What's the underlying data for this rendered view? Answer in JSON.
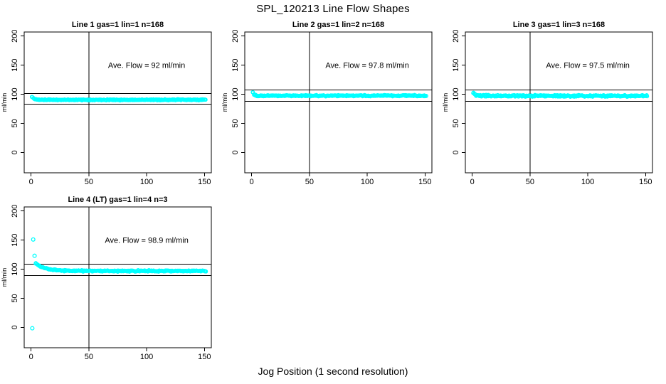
{
  "figure": {
    "title": "SPL_120213  Line Flow Shapes",
    "xlabel": "Jog Position (1 second resolution)",
    "background": "#ffffff",
    "point_color": "#00ffff",
    "axis_color": "#000000"
  },
  "chart_data": {
    "type": "scatter",
    "title": "SPL_120213  Line Flow Shapes",
    "xlabel": "Jog Position (1 second resolution)",
    "ylabel": "ml/min",
    "legend": "none",
    "grid": "off",
    "shared_axes": {
      "xlim": [
        -6,
        156
      ],
      "ylim": [
        -35,
        207
      ],
      "xticks": [
        0,
        50,
        100,
        150
      ],
      "yticks": [
        0,
        50,
        100,
        150,
        200
      ],
      "vline_x": 50,
      "annotation_x": 100,
      "annotation_y": 150
    },
    "panels": [
      {
        "title": "Line 1 gas=1 lin=1 n=168",
        "annotation": "Ave. Flow =  92  ml/min",
        "ave_flow_ml_min": 92,
        "hlines": [
          101.2,
          82.8
        ],
        "band": {
          "x_start": 1,
          "x_end": 151,
          "step": 1,
          "per_x": 2,
          "mean": 90.5,
          "jitter": 1.4,
          "transient_amp": 4.5,
          "transient_decay": 1.8,
          "seed": 11
        },
        "outliers": []
      },
      {
        "title": "Line 2 gas=1 lin=2 n=168",
        "annotation": "Ave. Flow =  97.8  ml/min",
        "ave_flow_ml_min": 97.8,
        "hlines": [
          107.6,
          88.0
        ],
        "band": {
          "x_start": 1,
          "x_end": 151,
          "step": 1,
          "per_x": 2,
          "mean": 97.5,
          "jitter": 1.5,
          "transient_amp": 6,
          "transient_decay": 1.2,
          "seed": 22
        },
        "outliers": []
      },
      {
        "title": "Line 3 gas=1 lin=3 n=168",
        "annotation": "Ave. Flow =  97.5  ml/min",
        "ave_flow_ml_min": 97.5,
        "hlines": [
          107.3,
          87.8
        ],
        "band": {
          "x_start": 1,
          "x_end": 151,
          "step": 1,
          "per_x": 2,
          "mean": 97.2,
          "jitter": 2.1,
          "transient_amp": 5,
          "transient_decay": 1.5,
          "seed": 33
        },
        "outliers": []
      },
      {
        "title": "Line 4 (LT) gas=1 lin=4 n=3",
        "annotation": "Ave. Flow =  98.9  ml/min",
        "ave_flow_ml_min": 98.9,
        "hlines": [
          108.8,
          89.0
        ],
        "band": {
          "x_start": 4,
          "x_end": 151,
          "step": 1,
          "per_x": 2,
          "mean": 97,
          "jitter": 1.6,
          "transient_amp": 13,
          "transient_decay": 8,
          "seed": 44
        },
        "outliers": [
          [
            1.8,
            151
          ],
          [
            3,
            123
          ],
          [
            1,
            -1.5
          ]
        ]
      }
    ]
  }
}
